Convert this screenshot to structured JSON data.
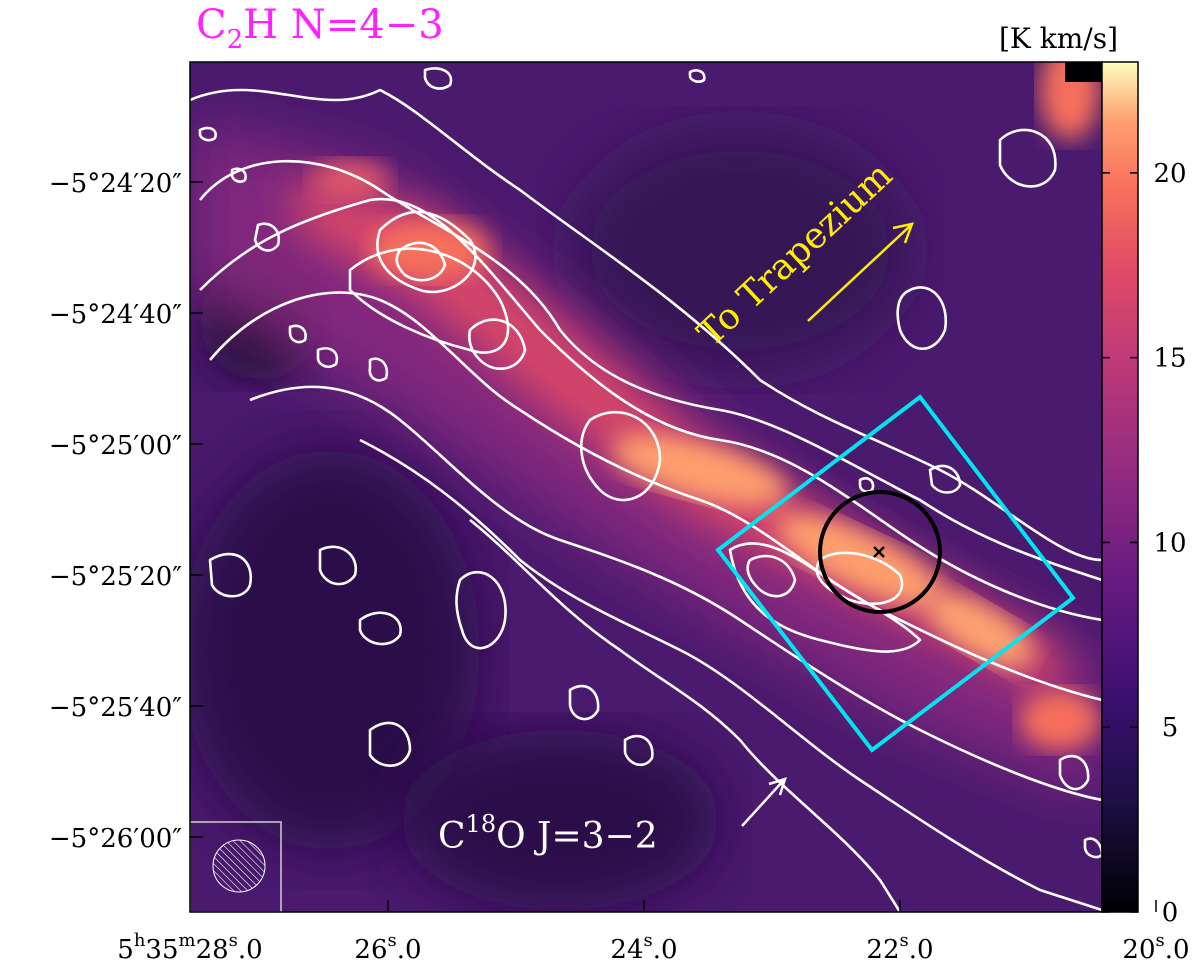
{
  "figure": {
    "title": {
      "main": "C",
      "sub": "2",
      "rest": "H N=4−3"
    },
    "colorbar": {
      "unit": "[K km/s]",
      "ticks": [
        "0",
        "5",
        "10",
        "15",
        "20"
      ],
      "range": [
        0,
        23
      ],
      "colormap": "magma"
    },
    "axes": {
      "dec_ticks": [
        "−5°24′20″",
        "−5°24′40″",
        "−5°25′00″",
        "−5°25′20″",
        "−5°25′40″",
        "−5°26′00″"
      ],
      "ra_ticks": [
        {
          "h": "5",
          "m": "35",
          "s": "28",
          "frac": "0"
        },
        {
          "s": "26",
          "frac": "0"
        },
        {
          "s": "24",
          "frac": "0"
        },
        {
          "s": "22",
          "frac": "0"
        },
        {
          "s": "20",
          "frac": "0"
        }
      ]
    },
    "annotations": {
      "trapezium": "To Trapezium",
      "contour_label": {
        "main": "C",
        "sup": "18",
        "rest": "O J=3−2"
      }
    },
    "colors": {
      "title": "#ff22ff",
      "trapezium": "#ffee00",
      "box": "#00e5f0",
      "contours": "#ffffff",
      "circle": "#000000"
    }
  }
}
